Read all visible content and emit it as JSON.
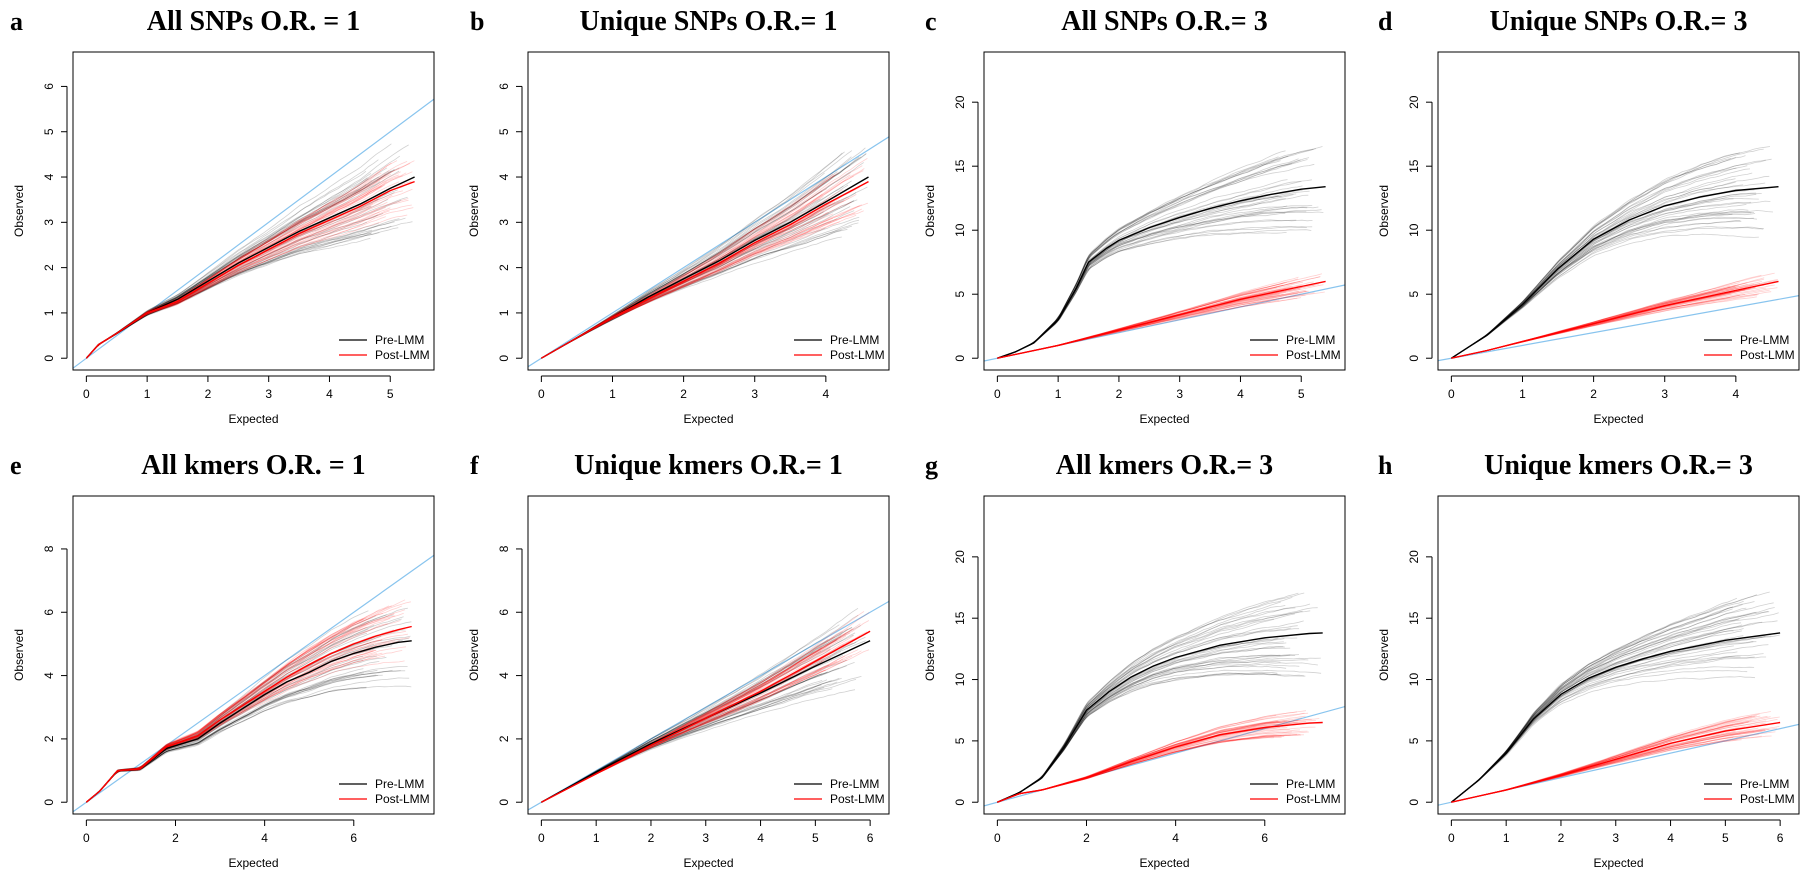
{
  "legend": {
    "pre_label": "Pre-LMM",
    "post_label": "Post-LMM"
  },
  "colors": {
    "pre": "#000000",
    "post": "#ff0000",
    "null": "#88c4ee",
    "frame": "#000000"
  },
  "chart_data": [
    {
      "letter": "a",
      "type": "line",
      "title": "All SNPs O.R. = 1",
      "xlabel": "Expected",
      "ylabel": "Observed",
      "xlim": [
        0,
        5.5
      ],
      "ylim": [
        0,
        6.5
      ],
      "xticks": [
        0,
        1,
        2,
        3,
        4,
        5
      ],
      "yticks": [
        0,
        1,
        2,
        3,
        4,
        5,
        6
      ],
      "series": [
        {
          "name": "Pre-LMM",
          "x": [
            0,
            0.2,
            0.5,
            1,
            1.5,
            2,
            2.5,
            3,
            3.5,
            4,
            4.5,
            5,
            5.4
          ],
          "y": [
            0,
            0.3,
            0.55,
            1.0,
            1.3,
            1.7,
            2.1,
            2.45,
            2.8,
            3.1,
            3.4,
            3.75,
            4.0
          ]
        },
        {
          "name": "Post-LMM",
          "x": [
            0,
            0.2,
            0.5,
            1,
            1.5,
            2,
            2.5,
            3,
            3.5,
            4,
            4.5,
            5,
            5.4
          ],
          "y": [
            0,
            0.3,
            0.55,
            1.0,
            1.25,
            1.65,
            2.05,
            2.4,
            2.75,
            3.05,
            3.35,
            3.7,
            3.9
          ]
        }
      ]
    },
    {
      "letter": "b",
      "type": "line",
      "title": "Unique SNPs O.R.= 1",
      "xlabel": "Expected",
      "ylabel": "Observed",
      "xlim": [
        0,
        4.7
      ],
      "ylim": [
        0,
        6.5
      ],
      "xticks": [
        0,
        1,
        2,
        3,
        4
      ],
      "yticks": [
        0,
        1,
        2,
        3,
        4,
        5,
        6
      ],
      "series": [
        {
          "name": "Pre-LMM",
          "x": [
            0,
            0.5,
            1,
            1.5,
            2,
            2.5,
            3,
            3.5,
            4,
            4.6
          ],
          "y": [
            0,
            0.45,
            0.9,
            1.35,
            1.75,
            2.15,
            2.6,
            3.0,
            3.45,
            4.0
          ]
        },
        {
          "name": "Post-LMM",
          "x": [
            0,
            0.5,
            1,
            1.5,
            2,
            2.5,
            3,
            3.5,
            4,
            4.6
          ],
          "y": [
            0,
            0.45,
            0.9,
            1.3,
            1.7,
            2.1,
            2.55,
            2.95,
            3.4,
            3.9
          ]
        }
      ]
    },
    {
      "letter": "c",
      "type": "line",
      "title": "All SNPs O.R.= 3",
      "xlabel": "Expected",
      "ylabel": "Observed",
      "xlim": [
        0,
        5.5
      ],
      "ylim": [
        0,
        23
      ],
      "xticks": [
        0,
        1,
        2,
        3,
        4,
        5
      ],
      "yticks": [
        0,
        5,
        10,
        15,
        20
      ],
      "series": [
        {
          "name": "Pre-LMM",
          "x": [
            0,
            0.3,
            0.6,
            1.0,
            1.3,
            1.5,
            1.8,
            2.0,
            2.5,
            3.0,
            3.5,
            4.0,
            4.5,
            5.0,
            5.4
          ],
          "y": [
            0,
            0.5,
            1.2,
            3.0,
            5.5,
            7.5,
            8.6,
            9.2,
            10.2,
            11.0,
            11.7,
            12.3,
            12.8,
            13.2,
            13.4
          ]
        },
        {
          "name": "Post-LMM",
          "x": [
            0,
            0.5,
            1.0,
            1.5,
            2.0,
            2.5,
            3.0,
            3.5,
            4.0,
            4.5,
            5.0,
            5.4
          ],
          "y": [
            0,
            0.5,
            1.0,
            1.6,
            2.2,
            2.8,
            3.4,
            4.0,
            4.6,
            5.1,
            5.6,
            6.0
          ]
        }
      ]
    },
    {
      "letter": "d",
      "type": "line",
      "title": "Unique SNPs O.R.= 3",
      "xlabel": "Expected",
      "ylabel": "Observed",
      "xlim": [
        0,
        4.7
      ],
      "ylim": [
        0,
        23
      ],
      "xticks": [
        0,
        1,
        2,
        3,
        4
      ],
      "yticks": [
        0,
        5,
        10,
        15,
        20
      ],
      "series": [
        {
          "name": "Pre-LMM",
          "x": [
            0,
            0.5,
            1.0,
            1.5,
            2.0,
            2.5,
            3.0,
            3.5,
            4.0,
            4.6
          ],
          "y": [
            0,
            1.8,
            4.2,
            7.0,
            9.3,
            10.8,
            11.9,
            12.6,
            13.1,
            13.4
          ]
        },
        {
          "name": "Post-LMM",
          "x": [
            0,
            0.5,
            1.0,
            1.5,
            2.0,
            2.5,
            3.0,
            3.5,
            4.0,
            4.6
          ],
          "y": [
            0,
            0.6,
            1.3,
            2.0,
            2.7,
            3.4,
            4.1,
            4.7,
            5.3,
            6.0
          ]
        }
      ]
    },
    {
      "letter": "e",
      "type": "line",
      "title": "All kmers O.R. = 1",
      "xlabel": "Expected",
      "ylabel": "Observed",
      "xlim": [
        0,
        7.5
      ],
      "ylim": [
        0,
        9.3
      ],
      "xticks": [
        0,
        2,
        4,
        6
      ],
      "yticks": [
        0,
        2,
        4,
        6,
        8
      ],
      "series": [
        {
          "name": "Pre-LMM",
          "x": [
            0,
            0.3,
            0.7,
            1.2,
            1.8,
            2.5,
            3,
            3.5,
            4,
            4.5,
            5,
            5.5,
            6,
            6.5,
            7,
            7.3
          ],
          "y": [
            0,
            0.35,
            1.0,
            1.05,
            1.7,
            2.0,
            2.5,
            2.95,
            3.4,
            3.8,
            4.1,
            4.45,
            4.7,
            4.9,
            5.05,
            5.1
          ]
        },
        {
          "name": "Post-LMM",
          "x": [
            0,
            0.3,
            0.7,
            1.2,
            1.8,
            2.5,
            3,
            3.5,
            4,
            4.5,
            5,
            5.5,
            6,
            6.5,
            7,
            7.3
          ],
          "y": [
            0,
            0.35,
            1.0,
            1.05,
            1.75,
            2.1,
            2.6,
            3.05,
            3.5,
            3.95,
            4.35,
            4.7,
            5.0,
            5.25,
            5.45,
            5.55
          ]
        }
      ]
    },
    {
      "letter": "f",
      "type": "line",
      "title": "Unique kmers O.R.= 1",
      "xlabel": "Expected",
      "ylabel": "Observed",
      "xlim": [
        0,
        6.1
      ],
      "ylim": [
        0,
        9.3
      ],
      "xticks": [
        0,
        1,
        2,
        3,
        4,
        5,
        6
      ],
      "yticks": [
        0,
        2,
        4,
        6,
        8
      ],
      "series": [
        {
          "name": "Pre-LMM",
          "x": [
            0,
            1,
            2,
            3,
            4,
            5,
            6
          ],
          "y": [
            0,
            0.95,
            1.85,
            2.65,
            3.45,
            4.3,
            5.1
          ]
        },
        {
          "name": "Post-LMM",
          "x": [
            0,
            1,
            2,
            3,
            4,
            5,
            6
          ],
          "y": [
            0,
            0.9,
            1.8,
            2.65,
            3.5,
            4.45,
            5.4
          ]
        }
      ]
    },
    {
      "letter": "g",
      "type": "line",
      "title": "All kmers O.R.= 3",
      "xlabel": "Expected",
      "ylabel": "Observed",
      "xlim": [
        0,
        7.5
      ],
      "ylim": [
        0,
        24
      ],
      "xticks": [
        0,
        2,
        4,
        6
      ],
      "yticks": [
        0,
        5,
        10,
        15,
        20
      ],
      "series": [
        {
          "name": "Pre-LMM",
          "x": [
            0,
            0.5,
            1.0,
            1.5,
            2.0,
            2.5,
            3,
            3.5,
            4,
            5,
            6,
            7,
            7.3
          ],
          "y": [
            0,
            0.8,
            2.0,
            4.5,
            7.5,
            9.0,
            10.2,
            11.1,
            11.8,
            12.8,
            13.4,
            13.75,
            13.8
          ]
        },
        {
          "name": "Post-LMM",
          "x": [
            0,
            0.5,
            1.0,
            2.0,
            3,
            4,
            5,
            6,
            7,
            7.3
          ],
          "y": [
            0,
            0.7,
            1.0,
            2.0,
            3.3,
            4.5,
            5.5,
            6.1,
            6.45,
            6.5
          ]
        }
      ]
    },
    {
      "letter": "h",
      "type": "line",
      "title": "Unique kmers O.R.= 3",
      "xlabel": "Expected",
      "ylabel": "Observed",
      "xlim": [
        0,
        6.1
      ],
      "ylim": [
        0,
        24
      ],
      "xticks": [
        0,
        1,
        2,
        3,
        4,
        5,
        6
      ],
      "yticks": [
        0,
        5,
        10,
        15,
        20
      ],
      "series": [
        {
          "name": "Pre-LMM",
          "x": [
            0,
            0.5,
            1.0,
            1.5,
            2.0,
            2.5,
            3,
            3.5,
            4,
            5,
            6
          ],
          "y": [
            0,
            1.8,
            4.0,
            6.8,
            8.8,
            10.1,
            11.0,
            11.7,
            12.3,
            13.2,
            13.8
          ]
        },
        {
          "name": "Post-LMM",
          "x": [
            0,
            1,
            2,
            3,
            4,
            5,
            6
          ],
          "y": [
            0,
            1.0,
            2.2,
            3.5,
            4.8,
            5.8,
            6.5
          ]
        }
      ]
    }
  ]
}
